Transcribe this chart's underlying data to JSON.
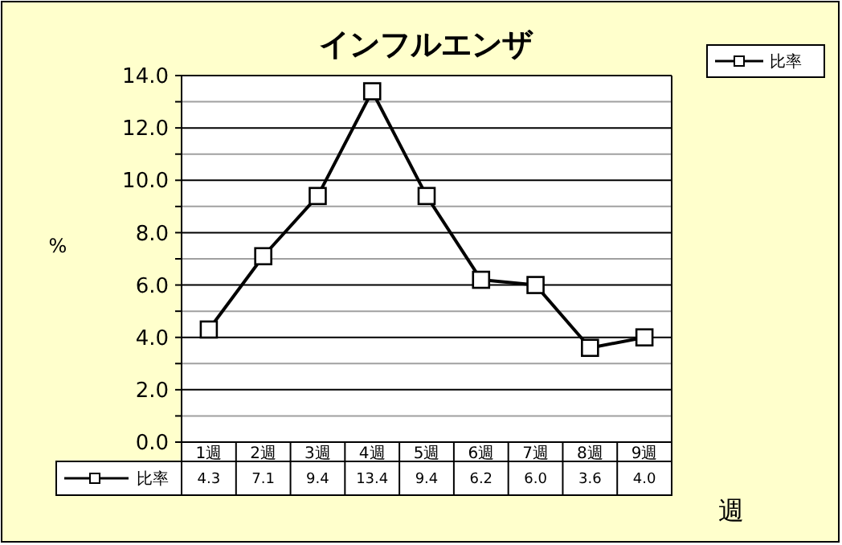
{
  "chart_data": {
    "type": "line",
    "title": "インフルエンザ",
    "ylabel": "%",
    "xlabel": "週",
    "categories": [
      "1週",
      "2週",
      "3週",
      "4週",
      "5週",
      "6週",
      "7週",
      "8週",
      "9週"
    ],
    "series": [
      {
        "name": "比率",
        "color": "#000000",
        "values": [
          4.3,
          7.1,
          9.4,
          13.4,
          9.4,
          6.2,
          6.0,
          3.6,
          4.0
        ],
        "value_labels": [
          "4.3",
          "7.1",
          "9.4",
          "13.4",
          "9.4",
          "6.2",
          "6.0",
          "3.6",
          "4.0"
        ]
      }
    ],
    "ylim": [
      0,
      14
    ],
    "yticks": [
      {
        "value": 0,
        "label": "0.0"
      },
      {
        "value": 1,
        "label": null
      },
      {
        "value": 2,
        "label": "2.0"
      },
      {
        "value": 3,
        "label": null
      },
      {
        "value": 4,
        "label": "4.0"
      },
      {
        "value": 5,
        "label": null
      },
      {
        "value": 6,
        "label": "6.0"
      },
      {
        "value": 7,
        "label": null
      },
      {
        "value": 8,
        "label": "8.0"
      },
      {
        "value": 9,
        "label": null
      },
      {
        "value": 10,
        "label": "10.0"
      },
      {
        "value": 11,
        "label": null
      },
      {
        "value": 12,
        "label": "12.0"
      },
      {
        "value": 13,
        "label": null
      },
      {
        "value": 14,
        "label": "14.0"
      }
    ],
    "grid": "y",
    "legend": "top right",
    "marker": "square",
    "line_style": "solid"
  }
}
